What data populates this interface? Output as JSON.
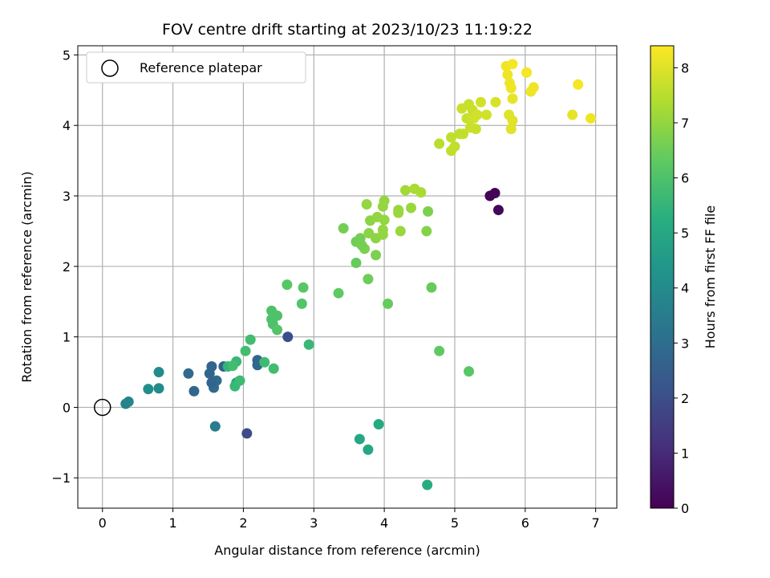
{
  "chart_data": {
    "type": "scatter",
    "title": "FOV centre drift starting at 2023/10/23 11:19:22",
    "xlabel": "Angular distance from reference (arcmin)",
    "ylabel": "Rotation from reference (arcmin)",
    "xlim": [
      -0.35,
      7.3
    ],
    "ylim": [
      -1.43,
      5.13
    ],
    "xticks": [
      "0",
      "1",
      "2",
      "3",
      "4",
      "5",
      "6",
      "7"
    ],
    "yticks": [
      "−1",
      "0",
      "1",
      "2",
      "3",
      "4",
      "5"
    ],
    "grid": true,
    "legend": {
      "position": "top-left",
      "entries": [
        "Reference platepar"
      ]
    },
    "reference_point": {
      "x": 0.0,
      "y": 0.0,
      "label": "Reference platepar"
    },
    "colorbar": {
      "label": "Hours from first FF file",
      "range": [
        0,
        8.4
      ],
      "ticks": [
        "0",
        "1",
        "2",
        "3",
        "4",
        "5",
        "6",
        "7",
        "8"
      ],
      "colormap": "viridis"
    },
    "series": [
      {
        "points": [
          {
            "x": 5.5,
            "y": 3.0,
            "t": 0.05
          },
          {
            "x": 5.57,
            "y": 3.04,
            "t": 0.1
          },
          {
            "x": 5.62,
            "y": 2.8,
            "t": 0.15
          },
          {
            "x": 2.05,
            "y": -0.37,
            "t": 1.9
          },
          {
            "x": 2.63,
            "y": 1.0,
            "t": 2.0
          },
          {
            "x": 1.3,
            "y": 0.23,
            "t": 2.8
          },
          {
            "x": 1.55,
            "y": 0.58,
            "t": 2.7
          },
          {
            "x": 1.52,
            "y": 0.48,
            "t": 2.8
          },
          {
            "x": 1.58,
            "y": 0.28,
            "t": 2.9
          },
          {
            "x": 1.62,
            "y": 0.38,
            "t": 3.0
          },
          {
            "x": 1.22,
            "y": 0.48,
            "t": 2.9
          },
          {
            "x": 1.72,
            "y": 0.58,
            "t": 2.6
          },
          {
            "x": 1.55,
            "y": 0.35,
            "t": 2.7
          },
          {
            "x": 2.2,
            "y": 0.67,
            "t": 2.75
          },
          {
            "x": 2.2,
            "y": 0.6,
            "t": 2.85
          },
          {
            "x": 1.6,
            "y": -0.27,
            "t": 3.5
          },
          {
            "x": 0.33,
            "y": 0.05,
            "t": 3.7
          },
          {
            "x": 0.37,
            "y": 0.08,
            "t": 3.8
          },
          {
            "x": 0.8,
            "y": 0.5,
            "t": 4.0
          },
          {
            "x": 0.8,
            "y": 0.27,
            "t": 4.0
          },
          {
            "x": 0.65,
            "y": 0.26,
            "t": 4.1
          },
          {
            "x": 1.9,
            "y": 0.35,
            "t": 4.8
          },
          {
            "x": 3.65,
            "y": -0.45,
            "t": 5.0
          },
          {
            "x": 3.77,
            "y": -0.6,
            "t": 5.0
          },
          {
            "x": 3.92,
            "y": -0.24,
            "t": 5.1
          },
          {
            "x": 4.61,
            "y": -1.1,
            "t": 5.2
          },
          {
            "x": 1.78,
            "y": 0.58,
            "t": 5.5
          },
          {
            "x": 1.9,
            "y": 0.65,
            "t": 5.6
          },
          {
            "x": 1.88,
            "y": 0.3,
            "t": 5.6
          },
          {
            "x": 1.95,
            "y": 0.38,
            "t": 5.7
          },
          {
            "x": 2.03,
            "y": 0.8,
            "t": 5.8
          },
          {
            "x": 2.1,
            "y": 0.96,
            "t": 5.8
          },
          {
            "x": 2.3,
            "y": 0.64,
            "t": 5.7
          },
          {
            "x": 2.43,
            "y": 0.55,
            "t": 5.8
          },
          {
            "x": 2.93,
            "y": 0.89,
            "t": 5.6
          },
          {
            "x": 1.85,
            "y": 0.59,
            "t": 5.8
          },
          {
            "x": 2.4,
            "y": 1.37,
            "t": 6.0
          },
          {
            "x": 2.42,
            "y": 1.18,
            "t": 6.0
          },
          {
            "x": 2.48,
            "y": 1.3,
            "t": 6.0
          },
          {
            "x": 2.48,
            "y": 1.1,
            "t": 6.1
          },
          {
            "x": 2.4,
            "y": 1.25,
            "t": 6.0
          },
          {
            "x": 2.62,
            "y": 1.74,
            "t": 6.2
          },
          {
            "x": 2.85,
            "y": 1.7,
            "t": 6.2
          },
          {
            "x": 2.83,
            "y": 1.47,
            "t": 6.1
          },
          {
            "x": 3.35,
            "y": 1.62,
            "t": 6.3
          },
          {
            "x": 4.05,
            "y": 1.47,
            "t": 6.4
          },
          {
            "x": 4.67,
            "y": 1.7,
            "t": 6.4
          },
          {
            "x": 4.78,
            "y": 0.8,
            "t": 6.3
          },
          {
            "x": 5.2,
            "y": 0.51,
            "t": 6.2
          },
          {
            "x": 3.6,
            "y": 2.05,
            "t": 6.4
          },
          {
            "x": 3.77,
            "y": 1.82,
            "t": 6.5
          },
          {
            "x": 3.42,
            "y": 2.54,
            "t": 6.6
          },
          {
            "x": 3.6,
            "y": 2.35,
            "t": 6.5
          },
          {
            "x": 3.66,
            "y": 2.4,
            "t": 6.6
          },
          {
            "x": 3.72,
            "y": 2.25,
            "t": 6.7
          },
          {
            "x": 3.68,
            "y": 2.3,
            "t": 6.6
          },
          {
            "x": 3.88,
            "y": 2.16,
            "t": 6.7
          },
          {
            "x": 4.62,
            "y": 2.78,
            "t": 6.7
          },
          {
            "x": 4.6,
            "y": 2.5,
            "t": 6.8
          },
          {
            "x": 3.75,
            "y": 2.88,
            "t": 7.0
          },
          {
            "x": 3.78,
            "y": 2.47,
            "t": 6.9
          },
          {
            "x": 3.8,
            "y": 2.65,
            "t": 6.9
          },
          {
            "x": 3.88,
            "y": 2.4,
            "t": 6.9
          },
          {
            "x": 3.9,
            "y": 2.7,
            "t": 7.0
          },
          {
            "x": 3.98,
            "y": 2.45,
            "t": 7.0
          },
          {
            "x": 3.98,
            "y": 2.52,
            "t": 7.0
          },
          {
            "x": 3.98,
            "y": 2.85,
            "t": 7.0
          },
          {
            "x": 4.0,
            "y": 2.93,
            "t": 7.0
          },
          {
            "x": 4.0,
            "y": 2.66,
            "t": 7.0
          },
          {
            "x": 4.2,
            "y": 2.76,
            "t": 7.1
          },
          {
            "x": 4.2,
            "y": 2.8,
            "t": 7.1
          },
          {
            "x": 4.38,
            "y": 2.83,
            "t": 7.1
          },
          {
            "x": 4.23,
            "y": 2.5,
            "t": 7.1
          },
          {
            "x": 4.3,
            "y": 3.08,
            "t": 7.2
          },
          {
            "x": 4.43,
            "y": 3.1,
            "t": 7.3
          },
          {
            "x": 4.52,
            "y": 3.05,
            "t": 7.3
          },
          {
            "x": 4.78,
            "y": 3.74,
            "t": 7.5
          },
          {
            "x": 4.95,
            "y": 3.83,
            "t": 7.6
          },
          {
            "x": 4.95,
            "y": 3.64,
            "t": 7.6
          },
          {
            "x": 5.0,
            "y": 3.7,
            "t": 7.6
          },
          {
            "x": 5.07,
            "y": 3.88,
            "t": 7.6
          },
          {
            "x": 5.12,
            "y": 3.88,
            "t": 7.6
          },
          {
            "x": 5.1,
            "y": 4.24,
            "t": 7.7
          },
          {
            "x": 5.17,
            "y": 4.1,
            "t": 7.7
          },
          {
            "x": 5.2,
            "y": 4.3,
            "t": 7.7
          },
          {
            "x": 5.25,
            "y": 4.22,
            "t": 7.7
          },
          {
            "x": 5.27,
            "y": 4.1,
            "t": 7.8
          },
          {
            "x": 5.22,
            "y": 3.97,
            "t": 7.7
          },
          {
            "x": 5.32,
            "y": 4.15,
            "t": 7.8
          },
          {
            "x": 5.3,
            "y": 3.95,
            "t": 7.7
          },
          {
            "x": 5.37,
            "y": 4.33,
            "t": 7.8
          },
          {
            "x": 5.45,
            "y": 4.15,
            "t": 7.8
          },
          {
            "x": 5.58,
            "y": 4.33,
            "t": 7.9
          },
          {
            "x": 5.73,
            "y": 4.84,
            "t": 8.2
          },
          {
            "x": 5.75,
            "y": 4.72,
            "t": 8.2
          },
          {
            "x": 5.78,
            "y": 4.6,
            "t": 8.2
          },
          {
            "x": 5.8,
            "y": 4.53,
            "t": 8.2
          },
          {
            "x": 5.82,
            "y": 4.87,
            "t": 8.3
          },
          {
            "x": 5.82,
            "y": 4.38,
            "t": 8.1
          },
          {
            "x": 5.77,
            "y": 4.15,
            "t": 8.0
          },
          {
            "x": 5.82,
            "y": 4.07,
            "t": 8.0
          },
          {
            "x": 5.8,
            "y": 3.95,
            "t": 8.0
          },
          {
            "x": 6.02,
            "y": 4.75,
            "t": 8.3
          },
          {
            "x": 6.08,
            "y": 4.48,
            "t": 8.2
          },
          {
            "x": 6.12,
            "y": 4.54,
            "t": 8.2
          },
          {
            "x": 6.67,
            "y": 4.15,
            "t": 8.1
          },
          {
            "x": 6.75,
            "y": 4.58,
            "t": 8.3
          },
          {
            "x": 6.93,
            "y": 4.1,
            "t": 8.2
          }
        ]
      }
    ]
  }
}
